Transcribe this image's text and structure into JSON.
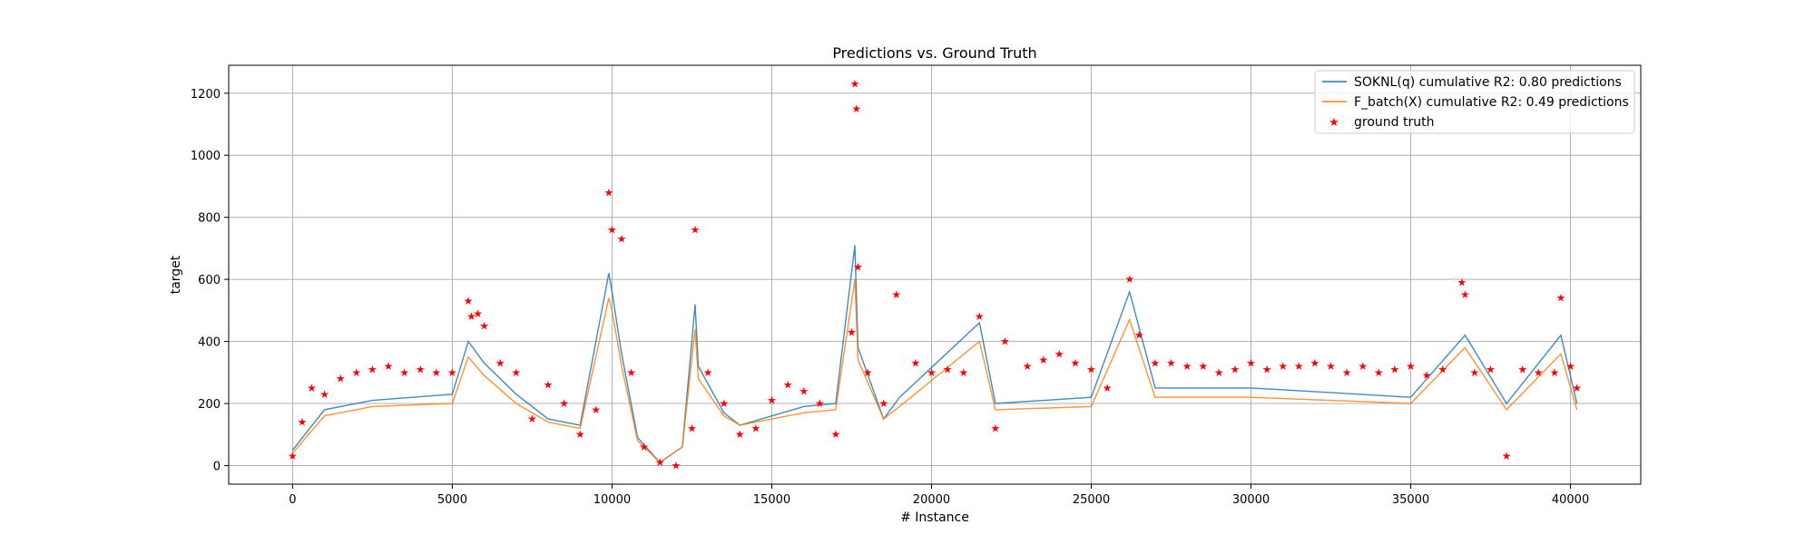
{
  "chart_data": {
    "type": "line",
    "title": "Predictions vs. Ground Truth",
    "xlabel": "# Instance",
    "ylabel": "target",
    "xlim": [
      -2000,
      42200
    ],
    "ylim": [
      -60,
      1290
    ],
    "xticks": [
      0,
      5000,
      10000,
      15000,
      20000,
      25000,
      30000,
      35000,
      40000
    ],
    "xtick_labels": [
      "0",
      "5000",
      "10000",
      "15000",
      "20000",
      "25000",
      "30000",
      "35000",
      "40000"
    ],
    "yticks": [
      0,
      200,
      400,
      600,
      800,
      1000,
      1200
    ],
    "ytick_labels": [
      "0",
      "200",
      "400",
      "600",
      "800",
      "1000",
      "1200"
    ],
    "grid": true,
    "legend_position": "top-right",
    "series": [
      {
        "name": "SOKNL(q) cumulative R2: 0.80 predictions",
        "kind": "line",
        "color": "#1f77b4",
        "x": [
          0,
          1000,
          2500,
          5000,
          5500,
          6000,
          7000,
          8000,
          9000,
          9900,
          10000,
          10300,
          10800,
          11500,
          12200,
          12600,
          12700,
          13500,
          14000,
          15000,
          16000,
          17000,
          17600,
          17700,
          18500,
          19000,
          21500,
          22000,
          25000,
          26200,
          27000,
          30000,
          35000,
          36700,
          38000,
          39700,
          40200
        ],
        "y": [
          50,
          180,
          210,
          230,
          400,
          330,
          230,
          150,
          130,
          620,
          560,
          360,
          90,
          10,
          60,
          520,
          320,
          170,
          130,
          160,
          190,
          200,
          710,
          380,
          150,
          220,
          460,
          200,
          220,
          560,
          250,
          250,
          220,
          420,
          200,
          420,
          200
        ]
      },
      {
        "name": "F_batch(X) cumulative R2: 0.49 predictions",
        "kind": "line",
        "color": "#ff7f0e",
        "x": [
          0,
          1000,
          2500,
          5000,
          5500,
          6000,
          7000,
          8000,
          9000,
          9900,
          10000,
          10300,
          10800,
          11500,
          12200,
          12600,
          12700,
          13500,
          14000,
          15000,
          16000,
          17000,
          17600,
          17700,
          18500,
          19000,
          21500,
          22000,
          25000,
          26200,
          27000,
          30000,
          35000,
          36700,
          38000,
          39700,
          40200
        ],
        "y": [
          40,
          160,
          190,
          200,
          350,
          290,
          200,
          140,
          120,
          540,
          500,
          320,
          80,
          10,
          60,
          440,
          280,
          160,
          130,
          150,
          170,
          180,
          600,
          340,
          150,
          190,
          400,
          180,
          190,
          470,
          220,
          220,
          200,
          380,
          180,
          360,
          180
        ]
      },
      {
        "name": "ground truth",
        "kind": "scatter",
        "marker": "star",
        "color": "#ff0000",
        "x": [
          0,
          300,
          600,
          1000,
          1500,
          2000,
          2500,
          3000,
          3500,
          4000,
          4500,
          5000,
          5500,
          5600,
          5800,
          6000,
          6500,
          7000,
          7500,
          8000,
          8500,
          9000,
          9500,
          9900,
          10000,
          10300,
          10600,
          11000,
          11500,
          12000,
          12500,
          12600,
          13000,
          13500,
          14000,
          14500,
          15000,
          15500,
          16000,
          16500,
          17000,
          17500,
          17600,
          17650,
          17700,
          18000,
          18500,
          18900,
          19500,
          20000,
          20500,
          21000,
          21500,
          22000,
          22300,
          23000,
          23500,
          24000,
          24500,
          25000,
          25500,
          26200,
          26500,
          27000,
          27500,
          28000,
          28500,
          29000,
          29500,
          30000,
          30500,
          31000,
          31500,
          32000,
          32500,
          33000,
          33500,
          34000,
          34500,
          35000,
          35500,
          36000,
          36600,
          36700,
          37000,
          37500,
          38000,
          38500,
          39000,
          39500,
          39700,
          40000,
          40200
        ],
        "y": [
          30,
          140,
          250,
          230,
          280,
          300,
          310,
          320,
          300,
          310,
          300,
          300,
          530,
          480,
          490,
          450,
          330,
          300,
          150,
          260,
          200,
          100,
          180,
          880,
          760,
          730,
          300,
          60,
          10,
          0,
          120,
          760,
          300,
          200,
          100,
          120,
          210,
          260,
          240,
          200,
          100,
          430,
          1230,
          1150,
          640,
          300,
          200,
          550,
          330,
          300,
          310,
          300,
          480,
          120,
          400,
          320,
          340,
          360,
          330,
          310,
          250,
          600,
          420,
          330,
          330,
          320,
          320,
          300,
          310,
          330,
          310,
          320,
          320,
          330,
          320,
          300,
          320,
          300,
          310,
          320,
          290,
          310,
          590,
          550,
          300,
          310,
          30,
          310,
          300,
          300,
          540,
          320,
          250
        ]
      }
    ]
  }
}
